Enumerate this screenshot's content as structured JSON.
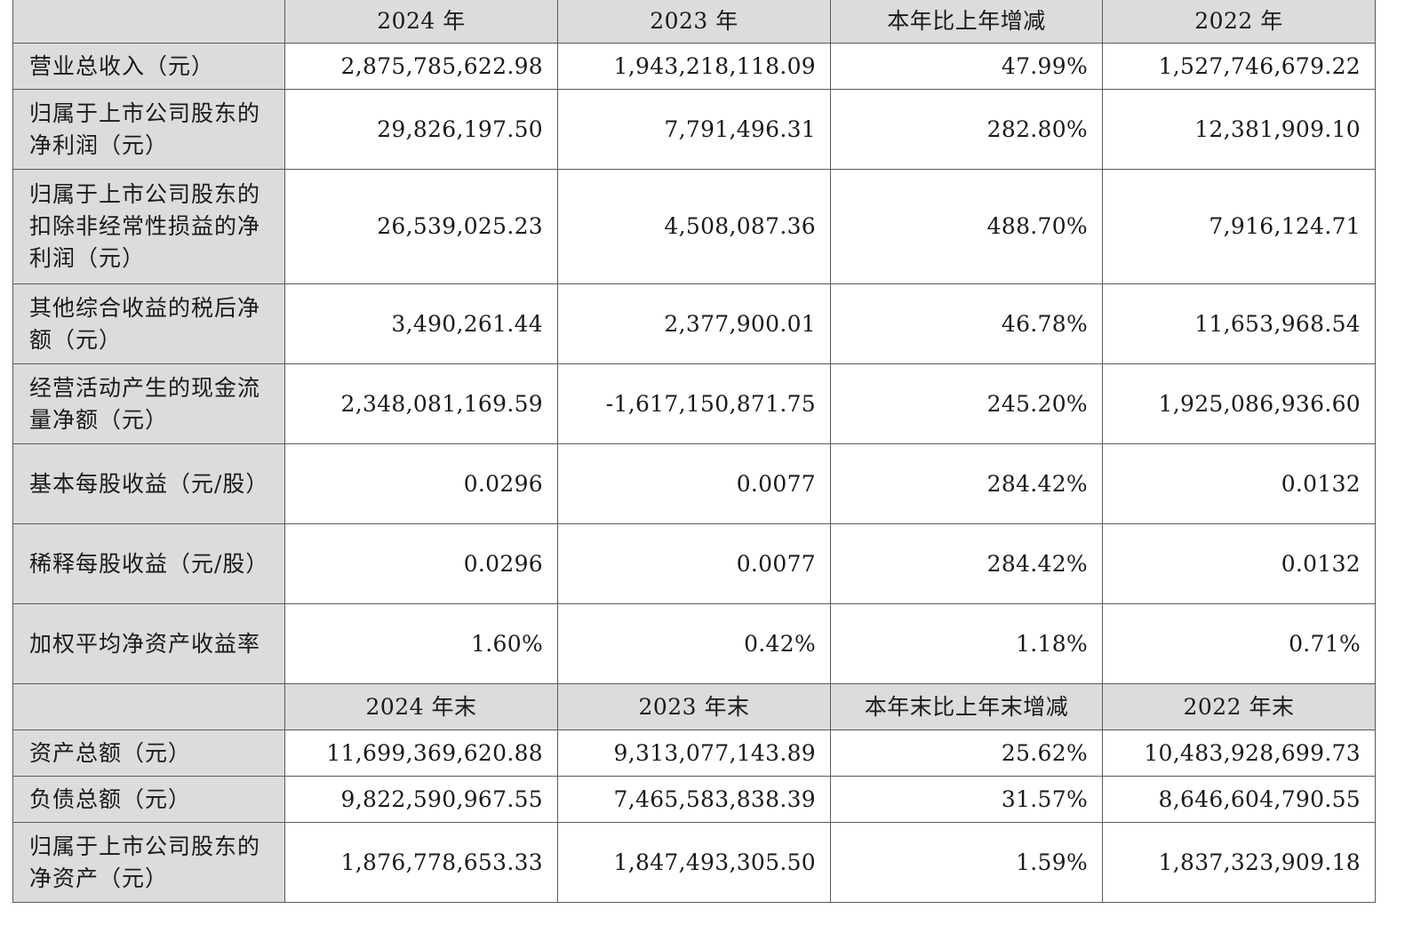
{
  "section1": {
    "headers": [
      "",
      "2024 年",
      "2023 年",
      "本年比上年增减",
      "2022 年"
    ],
    "rows": [
      {
        "label": "营业总收入（元）",
        "values": [
          "2,875,785,622.98",
          "1,943,218,118.09",
          "47.99%",
          "1,527,746,679.22"
        ]
      },
      {
        "label": "归属于上市公司股东的净利润（元）",
        "values": [
          "29,826,197.50",
          "7,791,496.31",
          "282.80%",
          "12,381,909.10"
        ]
      },
      {
        "label": "归属于上市公司股东的扣除非经常性损益的净利润（元）",
        "values": [
          "26,539,025.23",
          "4,508,087.36",
          "488.70%",
          "7,916,124.71"
        ]
      },
      {
        "label": "其他综合收益的税后净额（元）",
        "values": [
          "3,490,261.44",
          "2,377,900.01",
          "46.78%",
          "11,653,968.54"
        ]
      },
      {
        "label": "经营活动产生的现金流量净额（元）",
        "values": [
          "2,348,081,169.59",
          "-1,617,150,871.75",
          "245.20%",
          "1,925,086,936.60"
        ]
      },
      {
        "label": "基本每股收益（元/股）",
        "values": [
          "0.0296",
          "0.0077",
          "284.42%",
          "0.0132"
        ]
      },
      {
        "label": "稀释每股收益（元/股）",
        "values": [
          "0.0296",
          "0.0077",
          "284.42%",
          "0.0132"
        ]
      },
      {
        "label": "加权平均净资产收益率",
        "values": [
          "1.60%",
          "0.42%",
          "1.18%",
          "0.71%"
        ]
      }
    ]
  },
  "section2": {
    "headers": [
      "",
      "2024 年末",
      "2023 年末",
      "本年末比上年末增减",
      "2022 年末"
    ],
    "rows": [
      {
        "label": "资产总额（元）",
        "values": [
          "11,699,369,620.88",
          "9,313,077,143.89",
          "25.62%",
          "10,483,928,699.73"
        ]
      },
      {
        "label": "负债总额（元）",
        "values": [
          "9,822,590,967.55",
          "7,465,583,838.39",
          "31.57%",
          "8,646,604,790.55"
        ]
      },
      {
        "label": "归属于上市公司股东的净资产（元）",
        "values": [
          "1,876,778,653.33",
          "1,847,493,305.50",
          "1.59%",
          "1,837,323,909.18"
        ]
      }
    ]
  }
}
